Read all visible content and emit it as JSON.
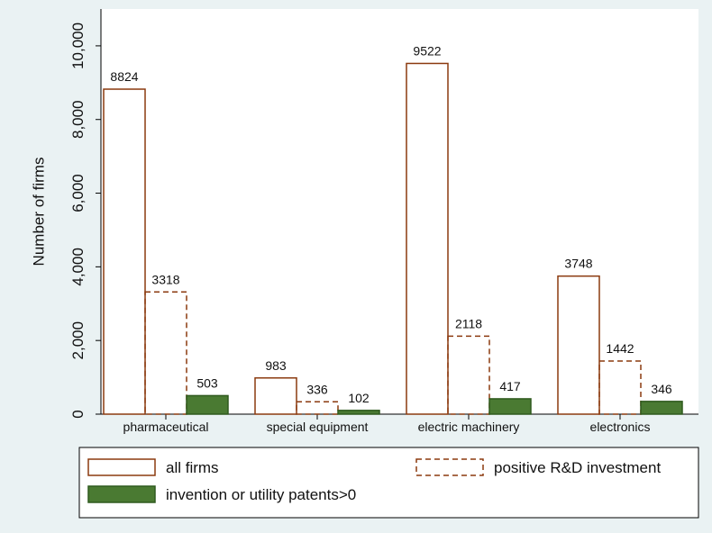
{
  "chart_data": {
    "type": "bar",
    "y_axis_label": "Number of firms",
    "categories": [
      "pharmaceutical",
      "special equipment",
      "electric machinery",
      "electronics"
    ],
    "series": [
      {
        "name": "all firms",
        "color": "#8b3a0f",
        "filled": false,
        "dashed": false,
        "values": [
          8824,
          983,
          9522,
          3748
        ]
      },
      {
        "name": "positive R&D investment",
        "color": "#8b3a0f",
        "filled": false,
        "dashed": true,
        "values": [
          3318,
          336,
          2118,
          1442
        ]
      },
      {
        "name": "invention or utility patents>0",
        "color": "#4a7a32",
        "filled": true,
        "dashed": false,
        "values": [
          503,
          102,
          417,
          346
        ]
      }
    ],
    "ylim": [
      0,
      11000
    ],
    "yticks": [
      0,
      {
        "value": 2000,
        "label": "2,000"
      },
      {
        "value": 4000,
        "label": "4,000"
      },
      {
        "value": 6000,
        "label": "6,000"
      },
      {
        "value": 8000,
        "label": "8,000"
      },
      {
        "value": 10000,
        "label": "10,000"
      }
    ],
    "grid": false,
    "legend": "bottom"
  }
}
